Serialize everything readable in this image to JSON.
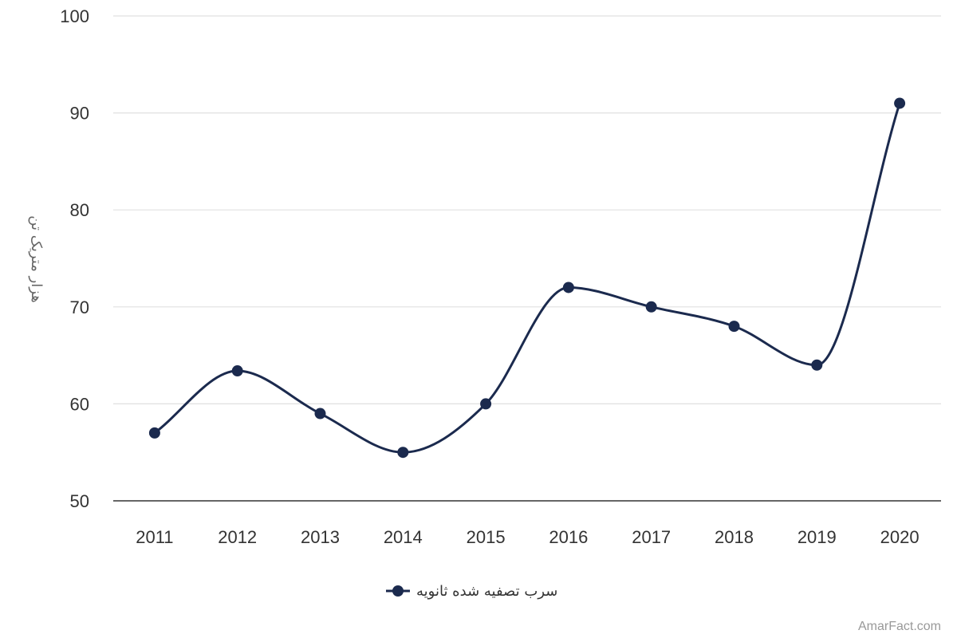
{
  "chart_data": {
    "type": "line",
    "x": [
      "2011",
      "2012",
      "2013",
      "2014",
      "2015",
      "2016",
      "2017",
      "2018",
      "2019",
      "2020"
    ],
    "series": [
      {
        "name": "سرب تصفیه شده ثانویه",
        "values": [
          57,
          63.4,
          59,
          55,
          60,
          72,
          70,
          68,
          64,
          91
        ],
        "color": "#1b2a4e"
      }
    ],
    "ylabel": "هزار متریک تن",
    "ylim": [
      50,
      100
    ],
    "yticks": [
      50,
      60,
      70,
      80,
      90,
      100
    ],
    "grid": true,
    "legend": "bottom-center",
    "smooth": true
  },
  "credit": "AmarFact.com"
}
